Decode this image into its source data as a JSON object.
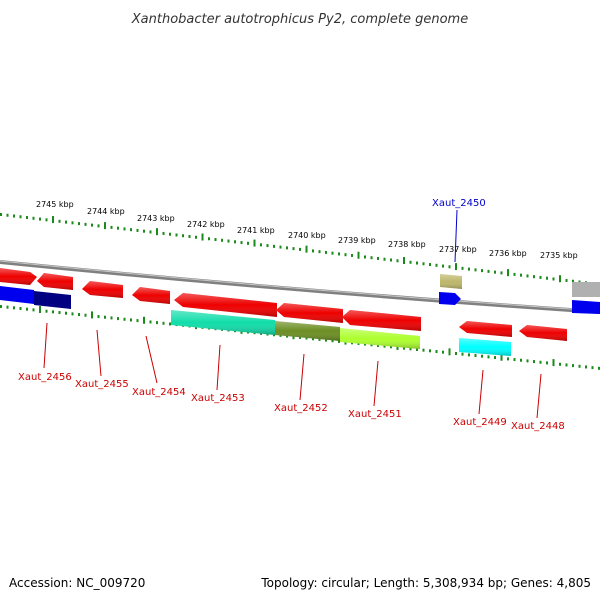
{
  "title": "Xanthobacter autotrophicus Py2, complete genome",
  "footer": {
    "accession": "Accession: NC_009720",
    "summary": "Topology: circular; Length: 5,308,934 bp; Genes: 4,805"
  },
  "colors": {
    "backbone": "#808080",
    "tick": "#1a8a1a",
    "label_red": "#cc0000",
    "label_blue": "#0000cc",
    "gene_red": "#ee0000",
    "gene_blue": "#0000ee",
    "gene_navy": "#000080",
    "gene_gray": "#b0b0b0",
    "gene_aqua": "#11ddaa",
    "gene_olive": "#6b8e23",
    "gene_lime": "#adff2f",
    "gene_cyan": "#00ffff",
    "gene_khaki": "#bdb76b"
  },
  "ticks": [
    {
      "label": "2745 kbp"
    },
    {
      "label": "2744 kbp"
    },
    {
      "label": "2743 kbp"
    },
    {
      "label": "2742 kbp"
    },
    {
      "label": "2741 kbp"
    },
    {
      "label": "2740 kbp"
    },
    {
      "label": "2739 kbp"
    },
    {
      "label": "2738 kbp"
    },
    {
      "label": "2737 kbp"
    },
    {
      "label": "2736 kbp"
    },
    {
      "label": "2735 kbp"
    }
  ],
  "gene_labels": [
    {
      "id": "Xaut_2456",
      "color": "red"
    },
    {
      "id": "Xaut_2455",
      "color": "red"
    },
    {
      "id": "Xaut_2454",
      "color": "red"
    },
    {
      "id": "Xaut_2453",
      "color": "red"
    },
    {
      "id": "Xaut_2452",
      "color": "red"
    },
    {
      "id": "Xaut_2451",
      "color": "red"
    },
    {
      "id": "Xaut_2450",
      "color": "blue"
    },
    {
      "id": "Xaut_2449",
      "color": "red"
    },
    {
      "id": "Xaut_2448",
      "color": "red"
    }
  ]
}
